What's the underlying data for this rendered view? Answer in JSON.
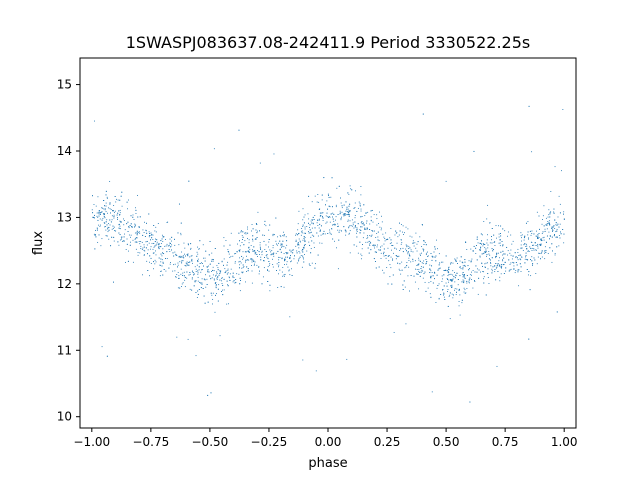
{
  "chart_data": {
    "type": "scatter",
    "title": "1SWASPJ083637.08-242411.9 Period 3330522.25s",
    "xlabel": "phase",
    "ylabel": "flux",
    "xlim": [
      -1.05,
      1.05
    ],
    "ylim": [
      9.83,
      15.4
    ],
    "xticks": [
      -1.0,
      -0.75,
      -0.5,
      -0.25,
      0.0,
      0.25,
      0.5,
      0.75,
      1.0
    ],
    "xtick_labels": [
      "−1.00",
      "−0.75",
      "−0.50",
      "−0.25",
      "0.00",
      "0.25",
      "0.50",
      "0.75",
      "1.00"
    ],
    "yticks": [
      10,
      11,
      12,
      13,
      14,
      15
    ],
    "ytick_labels": [
      "10",
      "11",
      "12",
      "13",
      "14",
      "15"
    ],
    "grid": false,
    "marker_color": "#1f77b4",
    "series": [
      {
        "phase_curve": {
          "x": [
            -1.0,
            -0.95,
            -0.9,
            -0.85,
            -0.8,
            -0.75,
            -0.7,
            -0.65,
            -0.6,
            -0.55,
            -0.5,
            -0.45,
            -0.4,
            -0.35,
            -0.3,
            -0.25,
            -0.2,
            -0.15,
            -0.1,
            -0.05,
            0.0,
            0.05,
            0.1,
            0.15,
            0.2,
            0.25,
            0.3,
            0.35,
            0.4,
            0.45,
            0.5,
            0.55,
            0.6,
            0.65,
            0.7,
            0.75,
            0.8,
            0.85,
            0.9,
            0.95,
            1.0
          ],
          "y": [
            12.95,
            13.05,
            13.0,
            12.85,
            12.7,
            12.55,
            12.5,
            12.45,
            12.35,
            12.2,
            12.1,
            12.1,
            12.3,
            12.45,
            12.5,
            12.45,
            12.4,
            12.5,
            12.7,
            12.9,
            13.0,
            13.05,
            13.0,
            12.85,
            12.7,
            12.55,
            12.5,
            12.45,
            12.35,
            12.2,
            12.1,
            12.05,
            12.3,
            12.45,
            12.5,
            12.45,
            12.4,
            12.5,
            12.7,
            12.9,
            12.95
          ]
        },
        "scatter_sd": 0.3,
        "point_count": 3000
      }
    ]
  }
}
